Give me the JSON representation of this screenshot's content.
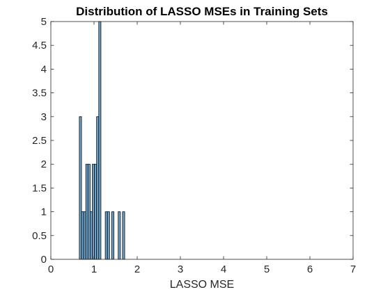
{
  "chart_data": {
    "type": "bar",
    "title": "Distribution of LASSO MSEs in Training Sets",
    "xlabel": "LASSO MSE",
    "ylabel": "",
    "xlim": [
      0,
      7
    ],
    "ylim": [
      0,
      5
    ],
    "x_ticks": [
      "0",
      "1",
      "2",
      "3",
      "4",
      "5",
      "6",
      "7"
    ],
    "y_ticks": [
      "0",
      "0.5",
      "1",
      "1.5",
      "2",
      "2.5",
      "3",
      "3.5",
      "4",
      "4.5",
      "5"
    ],
    "grid": false,
    "bar_color": "#6fa7cf",
    "bin_width": 0.05,
    "bins": [
      {
        "x0": 0.66,
        "x1": 0.71,
        "count": 3
      },
      {
        "x0": 0.71,
        "x1": 0.76,
        "count": 1
      },
      {
        "x0": 0.76,
        "x1": 0.81,
        "count": 1
      },
      {
        "x0": 0.81,
        "x1": 0.86,
        "count": 2
      },
      {
        "x0": 0.86,
        "x1": 0.91,
        "count": 2
      },
      {
        "x0": 0.91,
        "x1": 0.96,
        "count": 1
      },
      {
        "x0": 0.96,
        "x1": 1.01,
        "count": 2
      },
      {
        "x0": 1.01,
        "x1": 1.06,
        "count": 2
      },
      {
        "x0": 1.06,
        "x1": 1.11,
        "count": 3
      },
      {
        "x0": 1.11,
        "x1": 1.16,
        "count": 5
      },
      {
        "x0": 1.26,
        "x1": 1.31,
        "count": 1
      },
      {
        "x0": 1.31,
        "x1": 1.36,
        "count": 1
      },
      {
        "x0": 1.41,
        "x1": 1.46,
        "count": 1
      },
      {
        "x0": 1.56,
        "x1": 1.61,
        "count": 1
      },
      {
        "x0": 1.66,
        "x1": 1.71,
        "count": 1
      }
    ]
  }
}
